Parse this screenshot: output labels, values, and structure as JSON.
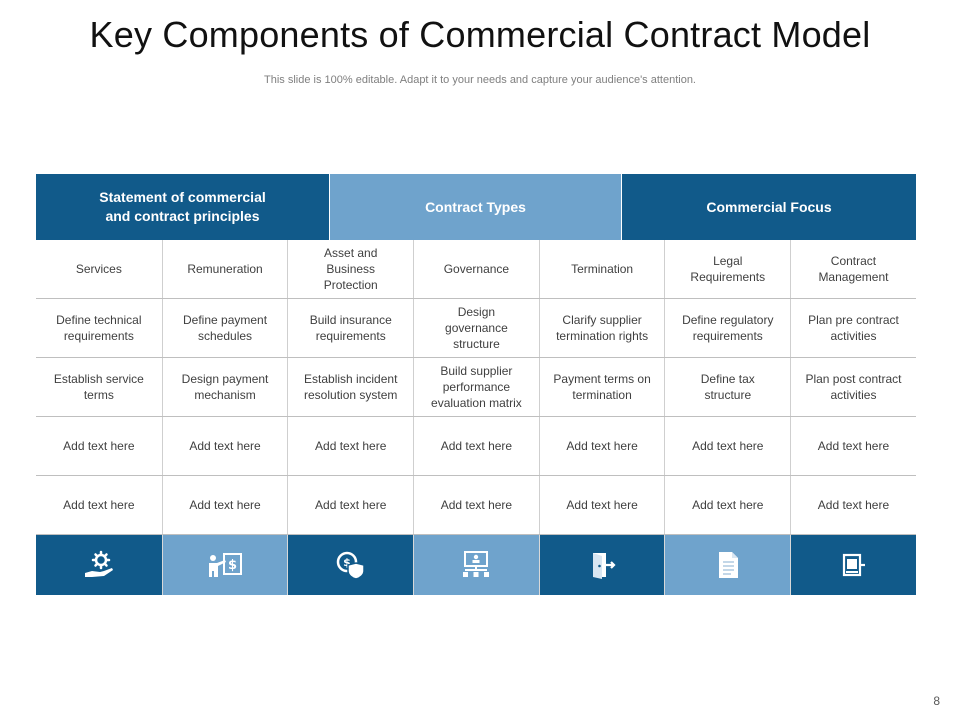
{
  "slide": {
    "title": "Key Components of Commercial  Contract Model",
    "subtitle": "This slide is 100% editable. Adapt it to your needs and capture your audience's attention.",
    "page_number": "8"
  },
  "headers": [
    "Statement of commercial\nand contract principles",
    "Contract Types",
    "Commercial Focus"
  ],
  "rows": [
    [
      "Services",
      "Remuneration",
      "Asset and\nBusiness\nProtection",
      "Governance",
      "Termination",
      "Legal\nRequirements",
      "Contract\nManagement"
    ],
    [
      "Define  technical\nrequirements",
      "Define  payment\nschedules",
      "Build insurance\nrequirements",
      "Design\ngovernance\nstructure",
      "Clarify supplier\ntermination rights",
      "Define regulatory\nrequirements",
      "Plan pre contract\nactivities"
    ],
    [
      "Establish service\nterms",
      "Design payment\nmechanism",
      "Establish incident\nresolution system",
      "Build supplier\nperformance\nevaluation  matrix",
      "Payment terms on\ntermination",
      "Define  tax\nstructure",
      "Plan post contract\nactivities"
    ],
    [
      "Add text here",
      "Add text here",
      "Add text here",
      "Add text here",
      "Add text here",
      "Add text here",
      "Add text here"
    ],
    [
      "Add text here",
      "Add text here",
      "Add text here",
      "Add text here",
      "Add text here",
      "Add text here",
      "Add text here"
    ]
  ],
  "icons": [
    "hand-gear-icon",
    "presenter-dollar-icon",
    "dollar-shield-icon",
    "org-chart-board-icon",
    "door-exit-icon",
    "document-icon",
    "contract-book-icon"
  ],
  "colors": {
    "dark_blue": "#115a8a",
    "light_blue": "#6fa3cc"
  }
}
